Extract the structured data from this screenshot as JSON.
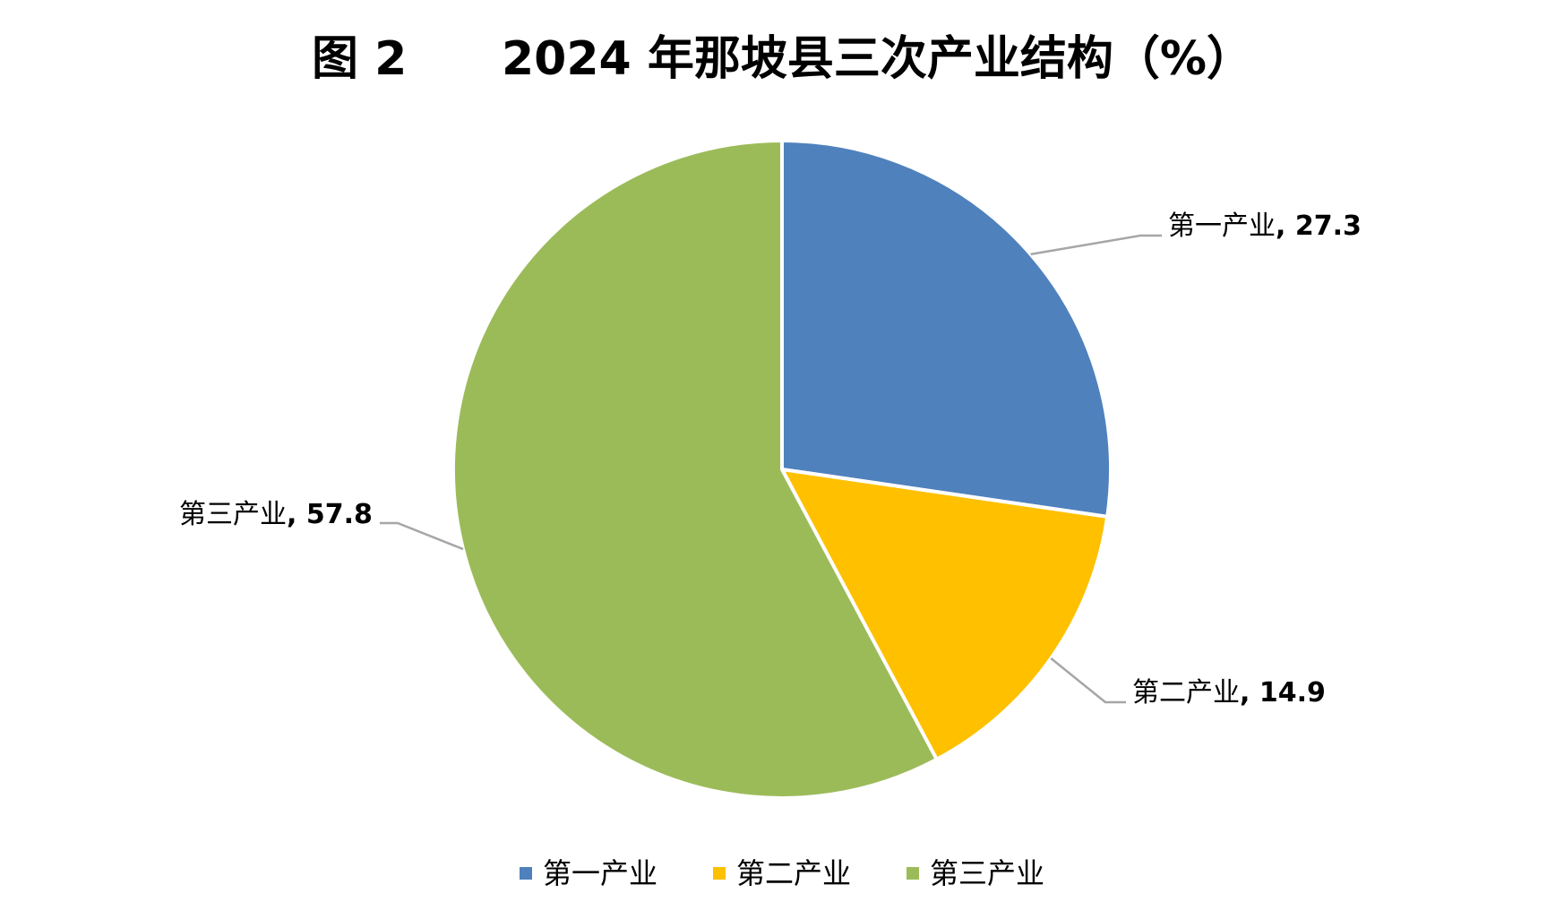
{
  "figure_label": "图 2",
  "chart_data": {
    "type": "pie",
    "title": "2024 年那坡县三次产业结构（%）",
    "categories": [
      "第一产业",
      "第二产业",
      "第三产业"
    ],
    "values": [
      27.3,
      14.9,
      57.8
    ],
    "colors": [
      "#4f81bd",
      "#ffc000",
      "#9bbb59"
    ],
    "data_labels": [
      "27.3",
      "14.9",
      "57.8"
    ],
    "start_angle": "12 o'clock",
    "direction": "clockwise",
    "legend_position": "bottom",
    "grid": false
  }
}
